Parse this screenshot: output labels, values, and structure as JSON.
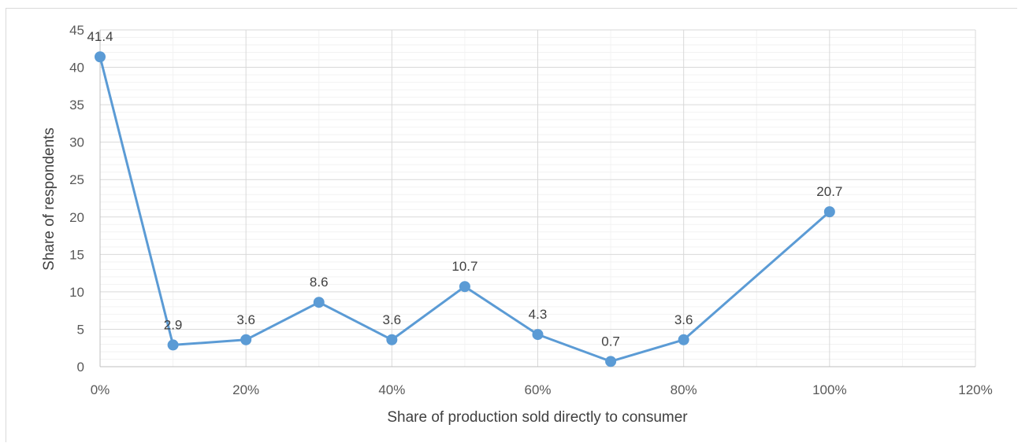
{
  "chart_data": {
    "type": "scatter",
    "title": "",
    "xlabel": "Share of production sold directly to consumer",
    "ylabel": "Share of respondents",
    "x": [
      0,
      10,
      20,
      30,
      40,
      50,
      60,
      70,
      80,
      100
    ],
    "y": [
      41.4,
      2.9,
      3.6,
      8.6,
      3.6,
      10.7,
      4.3,
      0.7,
      3.6,
      20.7
    ],
    "data_labels": [
      "41.4",
      "2.9",
      "3.6",
      "8.6",
      "3.6",
      "10.7",
      "4.3",
      "0.7",
      "3.6",
      "20.7"
    ],
    "xlim": [
      0,
      120
    ],
    "ylim": [
      0,
      45
    ],
    "x_ticks": [
      0,
      20,
      40,
      60,
      80,
      100,
      120
    ],
    "x_tick_labels": [
      "0%",
      "20%",
      "40%",
      "60%",
      "80%",
      "100%",
      "120%"
    ],
    "y_ticks": [
      0,
      5,
      10,
      15,
      20,
      25,
      30,
      35,
      40,
      45
    ],
    "y_tick_labels": [
      "0",
      "5",
      "10",
      "15",
      "20",
      "25",
      "30",
      "35",
      "40",
      "45"
    ],
    "series_style": "lines-and-markers",
    "grid": true,
    "legend": "none",
    "color": "#5b9bd5"
  }
}
